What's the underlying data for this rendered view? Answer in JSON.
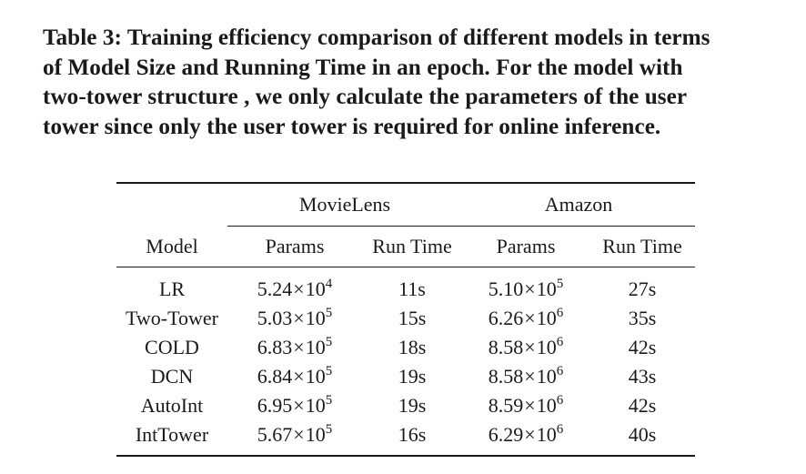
{
  "caption": {
    "line1": "Table 3: Training efficiency comparison of different models in terms",
    "line2": "of Model Size and Running Time in an epoch. For the model with",
    "line3": "two-tower structure , we only calculate the parameters of the user",
    "line4": "tower since only the user tower is required for online inference."
  },
  "table": {
    "groups": [
      "MovieLens",
      "Amazon"
    ],
    "columns": [
      "Model",
      "Params",
      "Run Time",
      "Params",
      "Run Time"
    ],
    "rows": [
      {
        "model": "LR",
        "ml_params_mant": "5.24",
        "ml_params_exp": "4",
        "ml_time": "11s",
        "am_params_mant": "5.10",
        "am_params_exp": "5",
        "am_time": "27s"
      },
      {
        "model": "Two-Tower",
        "ml_params_mant": "5.03",
        "ml_params_exp": "5",
        "ml_time": "15s",
        "am_params_mant": "6.26",
        "am_params_exp": "6",
        "am_time": "35s"
      },
      {
        "model": "COLD",
        "ml_params_mant": "6.83",
        "ml_params_exp": "5",
        "ml_time": "18s",
        "am_params_mant": "8.58",
        "am_params_exp": "6",
        "am_time": "42s"
      },
      {
        "model": "DCN",
        "ml_params_mant": "6.84",
        "ml_params_exp": "5",
        "ml_time": "19s",
        "am_params_mant": "8.58",
        "am_params_exp": "6",
        "am_time": "43s"
      },
      {
        "model": "AutoInt",
        "ml_params_mant": "6.95",
        "ml_params_exp": "5",
        "ml_time": "19s",
        "am_params_mant": "8.59",
        "am_params_exp": "6",
        "am_time": "42s"
      },
      {
        "model": "IntTower",
        "ml_params_mant": "5.67",
        "ml_params_exp": "5",
        "ml_time": "16s",
        "am_params_mant": "6.29",
        "am_params_exp": "6",
        "am_time": "40s"
      }
    ],
    "times_symbol": "×",
    "base": "10"
  }
}
